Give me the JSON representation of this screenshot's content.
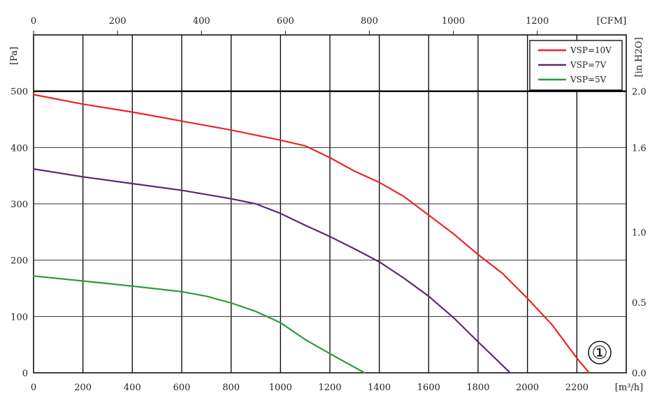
{
  "chart_data": {
    "type": "line",
    "title": "",
    "x_unit": "[m³/h]",
    "y_unit": "[Pa]",
    "x2_unit": "[CFM]",
    "y2_unit": "[in H2O]",
    "xlim": [
      0,
      2400
    ],
    "ylim": [
      0,
      600
    ],
    "x2lim": [
      0,
      1412
    ],
    "x_ticks": [
      "0",
      "200",
      "400",
      "600",
      "800",
      "1000",
      "1200",
      "1400",
      "1600",
      "1800",
      "2000",
      "2200"
    ],
    "y_ticks": [
      "0",
      "100",
      "200",
      "300",
      "400",
      "500"
    ],
    "x2_ticks": [
      "0",
      "200",
      "400",
      "600",
      "800",
      "1000",
      "1200"
    ],
    "y2_ticks": [
      "0.0",
      "0.5",
      "1.0",
      "1.6",
      "2.0"
    ],
    "grid": true,
    "legend_position": "top-right",
    "marker_label": "①",
    "series": [
      {
        "name": "VSP=10V",
        "color": "#e8262b",
        "points": [
          [
            0,
            494
          ],
          [
            200,
            477
          ],
          [
            400,
            463
          ],
          [
            600,
            447
          ],
          [
            800,
            431
          ],
          [
            1000,
            413
          ],
          [
            1100,
            403
          ],
          [
            1200,
            382
          ],
          [
            1300,
            358
          ],
          [
            1400,
            338
          ],
          [
            1500,
            313
          ],
          [
            1600,
            280
          ],
          [
            1700,
            247
          ],
          [
            1800,
            210
          ],
          [
            1900,
            176
          ],
          [
            2000,
            132
          ],
          [
            2100,
            85
          ],
          [
            2200,
            26
          ],
          [
            2250,
            0
          ]
        ]
      },
      {
        "name": "VSP=7V",
        "color": "#5a2a78",
        "points": [
          [
            0,
            362
          ],
          [
            200,
            348
          ],
          [
            400,
            336
          ],
          [
            600,
            324
          ],
          [
            800,
            309
          ],
          [
            900,
            300
          ],
          [
            1000,
            283
          ],
          [
            1100,
            262
          ],
          [
            1200,
            242
          ],
          [
            1300,
            220
          ],
          [
            1400,
            197
          ],
          [
            1500,
            168
          ],
          [
            1600,
            136
          ],
          [
            1700,
            98
          ],
          [
            1800,
            55
          ],
          [
            1930,
            0
          ]
        ]
      },
      {
        "name": "VSP=5V",
        "color": "#2a9a3e",
        "points": [
          [
            0,
            172
          ],
          [
            200,
            163
          ],
          [
            400,
            154
          ],
          [
            600,
            144
          ],
          [
            700,
            136
          ],
          [
            800,
            124
          ],
          [
            900,
            109
          ],
          [
            1000,
            89
          ],
          [
            1100,
            59
          ],
          [
            1200,
            34
          ],
          [
            1340,
            0
          ]
        ]
      }
    ]
  }
}
